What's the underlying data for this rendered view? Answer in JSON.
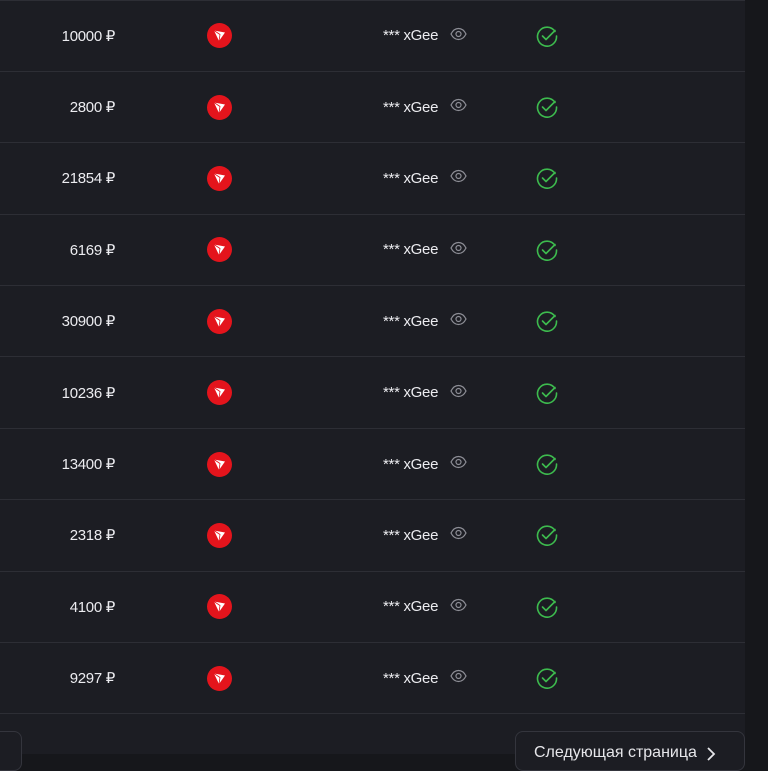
{
  "rows": [
    {
      "amount": "10000 ₽",
      "user": "*** xGee",
      "status": "success"
    },
    {
      "amount": "2800 ₽",
      "user": "*** xGee",
      "status": "success"
    },
    {
      "amount": "21854 ₽",
      "user": "*** xGee",
      "status": "success"
    },
    {
      "amount": "6169 ₽",
      "user": "*** xGee",
      "status": "success"
    },
    {
      "amount": "30900 ₽",
      "user": "*** xGee",
      "status": "success"
    },
    {
      "amount": "10236 ₽",
      "user": "*** xGee",
      "status": "success"
    },
    {
      "amount": "13400 ₽",
      "user": "*** xGee",
      "status": "success"
    },
    {
      "amount": "2318 ₽",
      "user": "*** xGee",
      "status": "success"
    },
    {
      "amount": "4100 ₽",
      "user": "*** xGee",
      "status": "success"
    },
    {
      "amount": "9297 ₽",
      "user": "*** xGee",
      "status": "success"
    }
  ],
  "pagination": {
    "next_label": "Следующая страница"
  },
  "icons": {
    "payment": "tron-icon",
    "visibility": "eye-icon",
    "status": "check-circle-icon",
    "next": "chevron-right-icon"
  },
  "colors": {
    "tron": "#e4141c",
    "success": "#3dbb4e"
  }
}
